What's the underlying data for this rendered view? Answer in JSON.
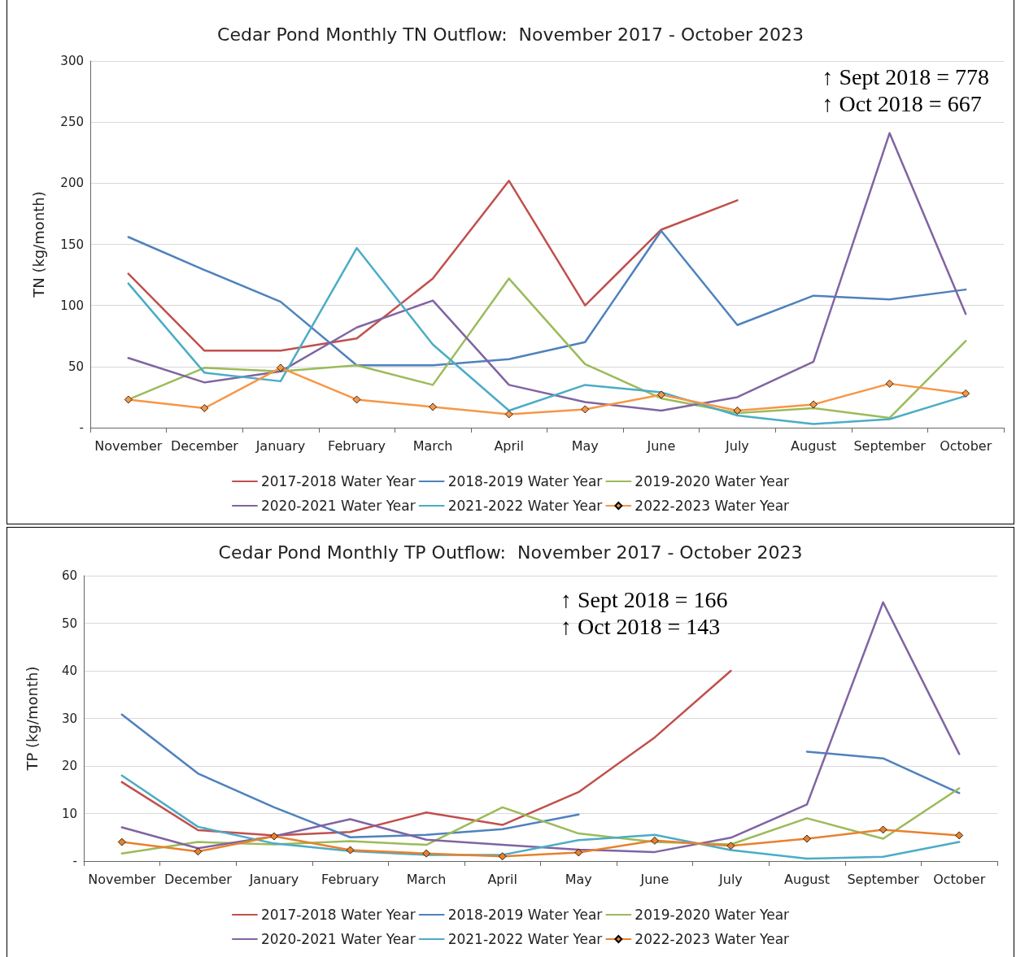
{
  "chart_data": [
    {
      "type": "line",
      "title": "Cedar Pond Monthly TN Outflow:  November 2017 - October 2023",
      "ylabel": "TN (kg/month)",
      "categories": [
        "November",
        "December",
        "January",
        "February",
        "March",
        "April",
        "May",
        "June",
        "July",
        "August",
        "September",
        "October"
      ],
      "series": [
        {
          "name": "2017-2018 Water Year",
          "color": "#c0504d",
          "marker": "none",
          "values": [
            126,
            63,
            63,
            73,
            122,
            202,
            100,
            162,
            186,
            null,
            null,
            null
          ]
        },
        {
          "name": "2018-2019 Water Year",
          "color": "#4f81bd",
          "marker": "none",
          "values": [
            156,
            129,
            103,
            51,
            51,
            56,
            70,
            161,
            84,
            108,
            105,
            113
          ]
        },
        {
          "name": "2019-2020 Water Year",
          "color": "#9bbb59",
          "marker": "none",
          "values": [
            23,
            49,
            46,
            51,
            35,
            122,
            52,
            24,
            12,
            16,
            8,
            71
          ]
        },
        {
          "name": "2020-2021 Water Year",
          "color": "#8064a2",
          "marker": "none",
          "values": [
            57,
            37,
            46,
            82,
            104,
            35,
            21,
            14,
            25,
            54,
            241,
            93
          ]
        },
        {
          "name": "2021-2022 Water Year",
          "color": "#4bacc6",
          "marker": "none",
          "values": [
            118,
            45,
            38,
            147,
            68,
            14,
            35,
            29,
            10,
            3,
            7,
            26
          ]
        },
        {
          "name": "2022-2023 Water Year",
          "color": "#f79646",
          "marker": "diamond",
          "values": [
            23,
            16,
            49,
            23,
            17,
            11,
            15,
            27,
            14,
            19,
            36,
            28
          ]
        }
      ],
      "ylim": [
        0,
        300
      ],
      "yticks": [
        {
          "value": 0,
          "label": "-"
        },
        50,
        100,
        150,
        200,
        250,
        300
      ],
      "grid": "y",
      "legend": "bottom",
      "annotations": [
        "↑ Sept 2018 = 778",
        "↑ Oct 2018 = 667"
      ]
    },
    {
      "type": "line",
      "title": "Cedar Pond Monthly TP Outflow:  November 2017 - October 2023",
      "ylabel": "TP (kg/month)",
      "categories": [
        "November",
        "December",
        "January",
        "February",
        "March",
        "April",
        "May",
        "June",
        "July",
        "August",
        "September",
        "October"
      ],
      "series": [
        {
          "name": "2017-2018 Water Year",
          "color": "#c0504d",
          "marker": "none",
          "values": [
            16.6,
            6.5,
            5.4,
            6.1,
            10.2,
            7.6,
            14.5,
            26,
            40,
            null,
            null,
            null
          ]
        },
        {
          "name": "2018-2019 Water Year",
          "color": "#4f81bd",
          "marker": "none",
          "values": [
            30.8,
            18.4,
            11.3,
            5.0,
            5.5,
            6.7,
            9.8,
            null,
            null,
            23.0,
            21.6,
            14.3
          ]
        },
        {
          "name": "2019-2020 Water Year",
          "color": "#9bbb59",
          "marker": "none",
          "values": [
            1.6,
            4.0,
            3.5,
            4.2,
            3.4,
            11.3,
            5.8,
            4.0,
            3.5,
            9.0,
            4.7,
            15.3
          ]
        },
        {
          "name": "2020-2021 Water Year",
          "color": "#8064a2",
          "marker": "none",
          "values": [
            7.1,
            2.7,
            5.2,
            8.8,
            4.5,
            3.4,
            2.4,
            1.9,
            4.9,
            11.9,
            54.4,
            22.5
          ]
        },
        {
          "name": "2021-2022 Water Year",
          "color": "#4bacc6",
          "marker": "none",
          "values": [
            18.0,
            7.2,
            3.7,
            2.1,
            1.3,
            1.3,
            4.4,
            5.5,
            2.3,
            0.5,
            0.9,
            4.0
          ]
        },
        {
          "name": "2022-2023 Water Year",
          "color": "#e8812e",
          "marker": "diamond",
          "values": [
            4.0,
            2.0,
            5.2,
            2.3,
            1.6,
            1.0,
            1.8,
            4.3,
            3.2,
            4.7,
            6.6,
            5.4
          ]
        }
      ],
      "ylim": [
        0,
        60
      ],
      "yticks": [
        {
          "value": 0,
          "label": "-"
        },
        10,
        20,
        30,
        40,
        50,
        60
      ],
      "grid": "y",
      "legend": "bottom",
      "annotations": [
        "↑ Sept 2018 = 166",
        "↑ Oct 2018 = 143"
      ]
    }
  ]
}
